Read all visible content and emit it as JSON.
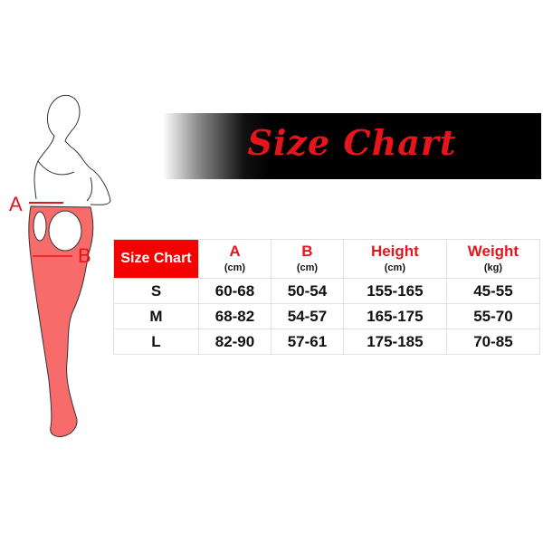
{
  "banner": {
    "title": "Size Chart"
  },
  "figure": {
    "label_a": "A",
    "label_b": "B",
    "tights_color": "#f76b6b"
  },
  "table": {
    "corner": "Size Chart",
    "columns": [
      {
        "name": "A",
        "unit": "(cm)"
      },
      {
        "name": "B",
        "unit": "(cm)"
      },
      {
        "name": "Height",
        "unit": "(cm)"
      },
      {
        "name": "Weight",
        "unit": "(kg)"
      }
    ],
    "rows": [
      [
        "S",
        "60-68",
        "50-54",
        "155-165",
        "45-55"
      ],
      [
        "M",
        "68-82",
        "54-57",
        "165-175",
        "55-70"
      ],
      [
        "L",
        "82-90",
        "57-61",
        "175-185",
        "70-85"
      ]
    ]
  }
}
